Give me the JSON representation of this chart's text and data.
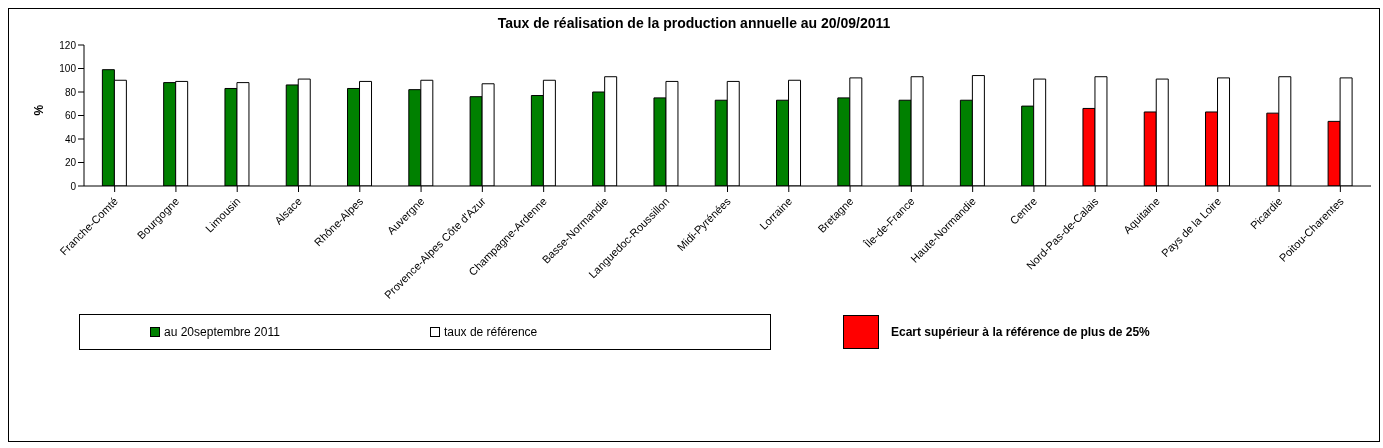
{
  "chart_data": {
    "type": "bar",
    "title": "Taux de réalisation de la production annuelle au 20/09/2011",
    "ylabel": "%",
    "categories": [
      "Franche-Comté",
      "Bourgogne",
      "Limousin",
      "Alsace",
      "Rhône-Alpes",
      "Auvergne",
      "Provence-Alpes Côte d'Azur",
      "Champagne-Ardenne",
      "Basse-Normandie",
      "Languedoc-Roussillon",
      "Midi-Pyrénées",
      "Lorraine",
      "Bretagne",
      "Île-de-France",
      "Haute-Normandie",
      "Centre",
      "Nord-Pas-de-Calais",
      "Aquitaine",
      "Pays de la Loire",
      "Picardie",
      "Poitou-Charentes"
    ],
    "series": [
      {
        "name": "au 20septembre 2011",
        "color": "#008000",
        "colors": [
          "#008000",
          "#008000",
          "#008000",
          "#008000",
          "#008000",
          "#008000",
          "#008000",
          "#008000",
          "#008000",
          "#008000",
          "#008000",
          "#008000",
          "#008000",
          "#008000",
          "#008000",
          "#008000",
          "#ff0000",
          "#ff0000",
          "#ff0000",
          "#ff0000",
          "#ff0000"
        ],
        "values": [
          99,
          88,
          83,
          86,
          83,
          82,
          76,
          77,
          80,
          75,
          73,
          73,
          75,
          73,
          73,
          68,
          66,
          63,
          63,
          62,
          55
        ]
      },
      {
        "name": "taux de référence",
        "color": "#ffffff",
        "values": [
          90,
          89,
          88,
          91,
          89,
          90,
          87,
          90,
          93,
          89,
          89,
          90,
          92,
          93,
          94,
          91,
          93,
          91,
          92,
          93,
          92
        ]
      }
    ],
    "annotations": [
      "Ecart supérieur à la référence de plus de 25%"
    ],
    "ylim": [
      0,
      120
    ],
    "yticks": [
      0,
      20,
      40,
      60,
      80,
      100,
      120
    ],
    "grid": false,
    "legend": "bottom"
  }
}
